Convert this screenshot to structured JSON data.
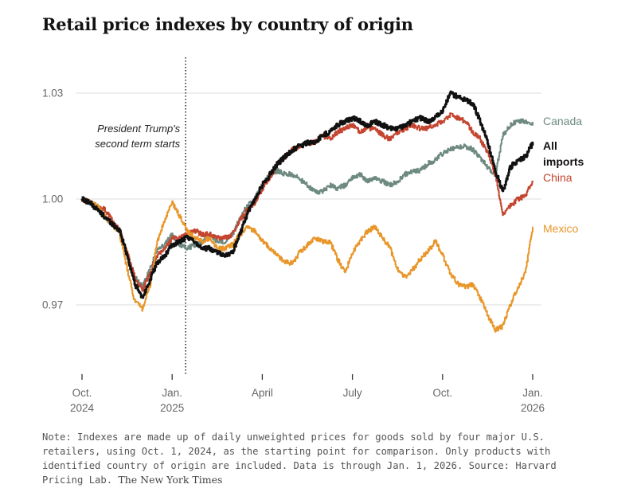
{
  "chart_data": {
    "type": "line",
    "title": "Retail price indexes by country of origin",
    "xlabel": "",
    "ylabel": "",
    "ylim": [
      0.95,
      1.035
    ],
    "yticks": [
      {
        "value": 1.03,
        "label": "1.03"
      },
      {
        "value": 1.0,
        "label": "1.00"
      },
      {
        "value": 0.97,
        "label": "0.97"
      }
    ],
    "xlim": [
      0,
      15
    ],
    "xticks": [
      {
        "x": 0,
        "line1": "Oct.",
        "line2": "2024"
      },
      {
        "x": 3,
        "line1": "Jan.",
        "line2": "2025"
      },
      {
        "x": 6,
        "line1": "April",
        "line2": ""
      },
      {
        "x": 9,
        "line1": "July",
        "line2": ""
      },
      {
        "x": 12,
        "line1": "Oct.",
        "line2": ""
      },
      {
        "x": 15,
        "line1": "Jan.",
        "line2": "2026"
      }
    ],
    "x": [
      0,
      0.25,
      0.5,
      0.75,
      1,
      1.25,
      1.5,
      1.75,
      2,
      2.25,
      2.5,
      2.75,
      3,
      3.25,
      3.5,
      3.75,
      4,
      4.25,
      4.5,
      4.75,
      5,
      5.25,
      5.5,
      5.75,
      6,
      6.25,
      6.5,
      6.75,
      7,
      7.25,
      7.5,
      7.75,
      8,
      8.25,
      8.5,
      8.75,
      9,
      9.25,
      9.5,
      9.75,
      10,
      10.25,
      10.5,
      10.75,
      11,
      11.25,
      11.5,
      11.75,
      12,
      12.25,
      12.5,
      12.75,
      13,
      13.25,
      13.5,
      13.75,
      14,
      14.25,
      14.5,
      14.75,
      15
    ],
    "series": [
      {
        "name": "Canada",
        "label_lines": [
          "Canada"
        ],
        "color": "#6e8a80",
        "width": 2,
        "values": [
          1.0,
          0.999,
          0.997,
          0.995,
          0.993,
          0.991,
          0.984,
          0.978,
          0.975,
          0.98,
          0.986,
          0.987,
          0.99,
          0.987,
          0.986,
          0.987,
          0.988,
          0.99,
          0.988,
          0.988,
          0.99,
          0.995,
          0.998,
          1.0,
          1.004,
          1.007,
          1.008,
          1.007,
          1.007,
          1.0055,
          1.004,
          1.002,
          1.002,
          1.004,
          1.003,
          1.004,
          1.006,
          1.007,
          1.005,
          1.006,
          1.005,
          1.004,
          1.005,
          1.007,
          1.008,
          1.008,
          1.01,
          1.011,
          1.013,
          1.014,
          1.0145,
          1.015,
          1.014,
          1.0115,
          1.009,
          1.007,
          1.018,
          1.021,
          1.022,
          1.022,
          1.021
        ]
      },
      {
        "name": "China",
        "label_lines": [
          "China"
        ],
        "color": "#c4452f",
        "width": 2,
        "values": [
          1.0,
          0.999,
          0.998,
          0.997,
          0.994,
          0.991,
          0.985,
          0.978,
          0.974,
          0.979,
          0.984,
          0.986,
          0.989,
          0.989,
          0.99,
          0.991,
          0.99,
          0.99,
          0.989,
          0.989,
          0.99,
          0.994,
          0.997,
          0.999,
          1.003,
          1.006,
          1.01,
          1.012,
          1.014,
          1.015,
          1.016,
          1.016,
          1.018,
          1.017,
          1.019,
          1.02,
          1.021,
          1.019,
          1.02,
          1.02,
          1.018,
          1.017,
          1.019,
          1.02,
          1.021,
          1.02,
          1.02,
          1.021,
          1.022,
          1.024,
          1.023,
          1.022,
          1.019,
          1.017,
          1.013,
          1.007,
          0.996,
          0.998,
          1.0,
          1.001,
          1.005
        ]
      },
      {
        "name": "Mexico",
        "label_lines": [
          "Mexico"
        ],
        "color": "#e8962a",
        "width": 2,
        "values": [
          1.0,
          0.999,
          0.998,
          0.995,
          0.993,
          0.99,
          0.98,
          0.971,
          0.969,
          0.975,
          0.988,
          0.994,
          0.999,
          0.995,
          0.991,
          0.989,
          0.988,
          0.989,
          0.986,
          0.986,
          0.987,
          0.99,
          0.992,
          0.991,
          0.988,
          0.986,
          0.984,
          0.982,
          0.982,
          0.985,
          0.987,
          0.989,
          0.988,
          0.988,
          0.983,
          0.979,
          0.985,
          0.988,
          0.991,
          0.992,
          0.989,
          0.986,
          0.98,
          0.978,
          0.98,
          0.983,
          0.985,
          0.988,
          0.984,
          0.979,
          0.976,
          0.975,
          0.976,
          0.972,
          0.967,
          0.963,
          0.964,
          0.97,
          0.975,
          0.979,
          0.992
        ]
      },
      {
        "name": "All imports",
        "label_lines": [
          "All",
          "imports"
        ],
        "color": "#111111",
        "width": 2.8,
        "values": [
          1.0,
          0.999,
          0.997,
          0.995,
          0.993,
          0.991,
          0.984,
          0.976,
          0.972,
          0.977,
          0.982,
          0.984,
          0.987,
          0.988,
          0.989,
          0.988,
          0.986,
          0.986,
          0.985,
          0.984,
          0.985,
          0.99,
          0.996,
          1.0,
          1.004,
          1.007,
          1.01,
          1.012,
          1.014,
          1.015,
          1.016,
          1.016,
          1.018,
          1.019,
          1.021,
          1.022,
          1.023,
          1.022,
          1.021,
          1.022,
          1.021,
          1.02,
          1.02,
          1.021,
          1.022,
          1.023,
          1.022,
          1.023,
          1.025,
          1.03,
          1.029,
          1.028,
          1.027,
          1.022,
          1.016,
          1.008,
          1.002,
          1.009,
          1.011,
          1.012,
          1.016
        ]
      }
    ],
    "annotation": {
      "lines": [
        "President Trump's",
        "second term starts"
      ],
      "x": 3.45
    }
  },
  "footer": {
    "note": "Note: Indexes are made up of daily unweighted prices for goods sold by four major U.S. retailers, using Oct. 1, 2024, as the starting point for comparison. Only products with identified country of origin are included. Data is through Jan. 1, 2026.  Source: Harvard Pricing Lab.",
    "credit": "The New York Times"
  }
}
